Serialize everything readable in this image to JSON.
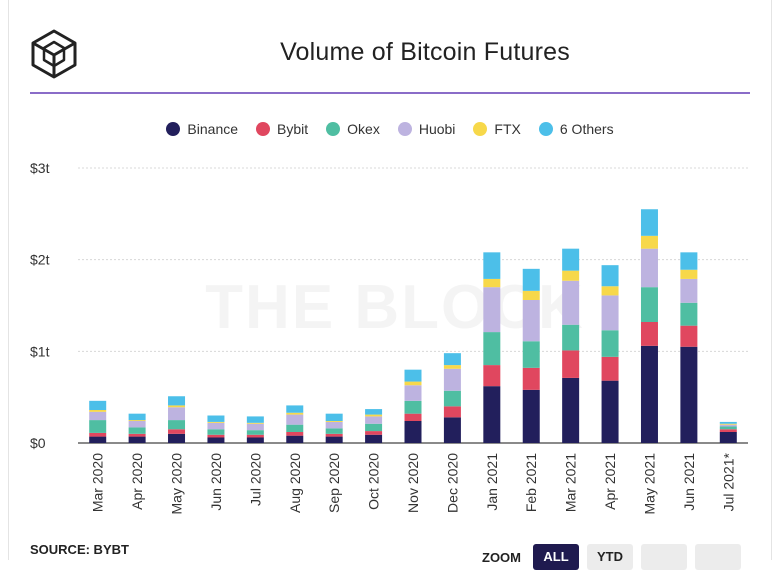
{
  "title": "Volume of Bitcoin Futures",
  "watermark": "THE BLOCK",
  "source": "SOURCE: BYBT",
  "zoom": {
    "label": "ZOOM",
    "buttons": [
      "ALL",
      "YTD",
      "",
      ""
    ],
    "active": "ALL"
  },
  "colors": {
    "accent": "#8a6cc8",
    "Binance": "#221f5c",
    "Bybit": "#e0475f",
    "Okex": "#4fbea2",
    "Huobi": "#bdb3e0",
    "FTX": "#f7d84a",
    "6 Others": "#4cbfe9"
  },
  "chart_data": {
    "type": "bar",
    "stacked": true,
    "title": "Volume of Bitcoin Futures",
    "categories": [
      "Mar 2020",
      "Apr 2020",
      "May 2020",
      "Jun 2020",
      "Jul 2020",
      "Aug 2020",
      "Sep 2020",
      "Oct 2020",
      "Nov 2020",
      "Dec 2020",
      "Jan 2021",
      "Feb 2021",
      "Mar 2021",
      "Apr 2021",
      "May 2021",
      "Jun 2021",
      "Jul 2021*"
    ],
    "series": [
      {
        "name": "Binance",
        "values": [
          0.07,
          0.07,
          0.1,
          0.06,
          0.06,
          0.08,
          0.07,
          0.09,
          0.24,
          0.28,
          0.62,
          0.58,
          0.71,
          0.68,
          1.06,
          1.05,
          0.12
        ]
      },
      {
        "name": "Bybit",
        "values": [
          0.04,
          0.03,
          0.05,
          0.03,
          0.03,
          0.04,
          0.03,
          0.04,
          0.08,
          0.12,
          0.23,
          0.24,
          0.3,
          0.26,
          0.26,
          0.23,
          0.03
        ]
      },
      {
        "name": "Okex",
        "values": [
          0.14,
          0.07,
          0.1,
          0.06,
          0.05,
          0.08,
          0.06,
          0.08,
          0.14,
          0.17,
          0.36,
          0.29,
          0.28,
          0.29,
          0.38,
          0.25,
          0.03
        ]
      },
      {
        "name": "Huobi",
        "values": [
          0.09,
          0.07,
          0.14,
          0.07,
          0.07,
          0.11,
          0.07,
          0.08,
          0.17,
          0.24,
          0.49,
          0.45,
          0.48,
          0.38,
          0.42,
          0.26,
          0.02
        ]
      },
      {
        "name": "FTX",
        "values": [
          0.02,
          0.01,
          0.02,
          0.01,
          0.01,
          0.02,
          0.01,
          0.02,
          0.04,
          0.04,
          0.09,
          0.1,
          0.11,
          0.1,
          0.14,
          0.1,
          0.01
        ]
      },
      {
        "name": "6 Others",
        "values": [
          0.1,
          0.07,
          0.1,
          0.07,
          0.07,
          0.08,
          0.08,
          0.06,
          0.13,
          0.13,
          0.29,
          0.24,
          0.24,
          0.23,
          0.29,
          0.19,
          0.02
        ]
      }
    ],
    "y_ticks": [
      {
        "value": 0,
        "label": "$0"
      },
      {
        "value": 1,
        "label": "$1t"
      },
      {
        "value": 2,
        "label": "$2t"
      },
      {
        "value": 3,
        "label": "$3t"
      }
    ],
    "ylim": [
      0,
      3
    ],
    "unit": "trillion USD",
    "grid": true,
    "legend_position": "top-center",
    "xlabel": "",
    "ylabel": ""
  }
}
